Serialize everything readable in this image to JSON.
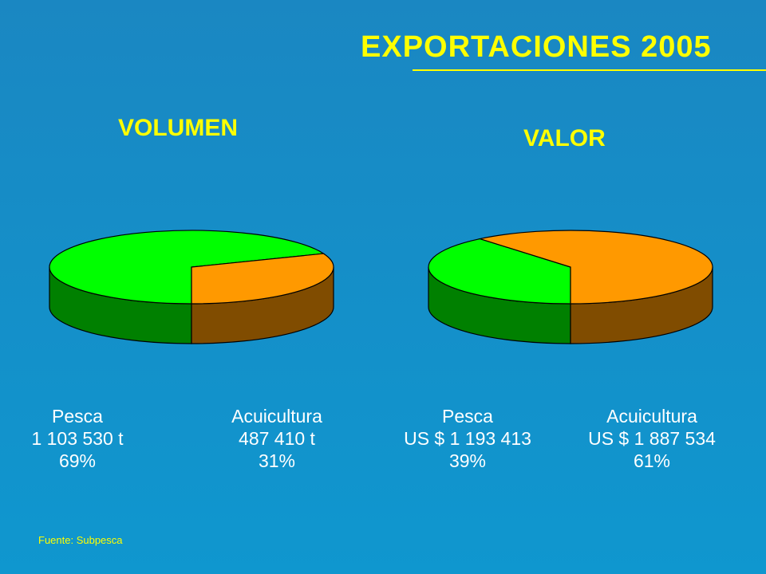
{
  "title": "EXPORTACIONES  2005",
  "source": "Fuente: Subpesca",
  "colors": {
    "background": "#1690c8",
    "title": "#ffff00",
    "pesca_top": "#00ff00",
    "pesca_side": "#008000",
    "acuicultura_top": "#ff9900",
    "acuicultura_side": "#804c00",
    "labels": "#ffffff"
  },
  "chart_data": [
    {
      "type": "pie",
      "title": "VOLUMEN",
      "slices": [
        {
          "label": "Pesca",
          "value_text": "1 103 530 t",
          "value": 1103530,
          "percent_text": "69%",
          "percent": 69
        },
        {
          "label": "Acuicultura",
          "value_text": "487 410 t",
          "value": 487410,
          "percent_text": "31%",
          "percent": 31
        }
      ]
    },
    {
      "type": "pie",
      "title": "VALOR",
      "slices": [
        {
          "label": "Pesca",
          "value_text": "US $ 1 193 413",
          "value": 1193413,
          "percent_text": "39%",
          "percent": 39
        },
        {
          "label": "Acuicultura",
          "value_text": "US $ 1 887 534",
          "value": 1887534,
          "percent_text": "61%",
          "percent": 61
        }
      ]
    }
  ]
}
